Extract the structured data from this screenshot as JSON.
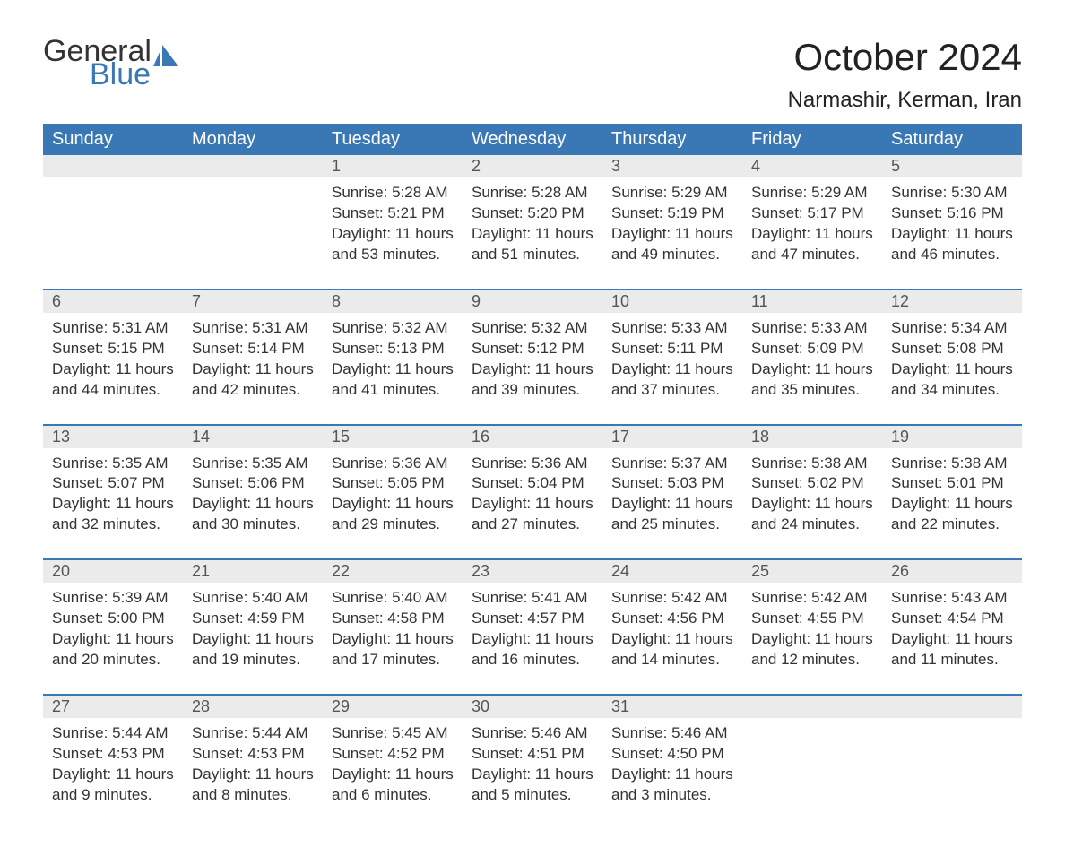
{
  "brand": {
    "word1": "General",
    "word2": "Blue",
    "accent_color": "#3a78b5"
  },
  "title": "October 2024",
  "location": "Narmashir, Kerman, Iran",
  "colors": {
    "header_bg": "#3a78b5",
    "header_text": "#ffffff",
    "daynum_bg": "#ebebeb",
    "daynum_text": "#555555",
    "body_text": "#333333",
    "rule": "#3a78b5",
    "page_bg": "#ffffff"
  },
  "typography": {
    "title_fontsize": 42,
    "location_fontsize": 24,
    "weekday_fontsize": 20,
    "daynum_fontsize": 18,
    "body_fontsize": 17,
    "font_family": "Arial"
  },
  "weekdays": [
    "Sunday",
    "Monday",
    "Tuesday",
    "Wednesday",
    "Thursday",
    "Friday",
    "Saturday"
  ],
  "weeks": [
    [
      null,
      null,
      {
        "n": "1",
        "sunrise": "5:28 AM",
        "sunset": "5:21 PM",
        "daylight": "11 hours and 53 minutes."
      },
      {
        "n": "2",
        "sunrise": "5:28 AM",
        "sunset": "5:20 PM",
        "daylight": "11 hours and 51 minutes."
      },
      {
        "n": "3",
        "sunrise": "5:29 AM",
        "sunset": "5:19 PM",
        "daylight": "11 hours and 49 minutes."
      },
      {
        "n": "4",
        "sunrise": "5:29 AM",
        "sunset": "5:17 PM",
        "daylight": "11 hours and 47 minutes."
      },
      {
        "n": "5",
        "sunrise": "5:30 AM",
        "sunset": "5:16 PM",
        "daylight": "11 hours and 46 minutes."
      }
    ],
    [
      {
        "n": "6",
        "sunrise": "5:31 AM",
        "sunset": "5:15 PM",
        "daylight": "11 hours and 44 minutes."
      },
      {
        "n": "7",
        "sunrise": "5:31 AM",
        "sunset": "5:14 PM",
        "daylight": "11 hours and 42 minutes."
      },
      {
        "n": "8",
        "sunrise": "5:32 AM",
        "sunset": "5:13 PM",
        "daylight": "11 hours and 41 minutes."
      },
      {
        "n": "9",
        "sunrise": "5:32 AM",
        "sunset": "5:12 PM",
        "daylight": "11 hours and 39 minutes."
      },
      {
        "n": "10",
        "sunrise": "5:33 AM",
        "sunset": "5:11 PM",
        "daylight": "11 hours and 37 minutes."
      },
      {
        "n": "11",
        "sunrise": "5:33 AM",
        "sunset": "5:09 PM",
        "daylight": "11 hours and 35 minutes."
      },
      {
        "n": "12",
        "sunrise": "5:34 AM",
        "sunset": "5:08 PM",
        "daylight": "11 hours and 34 minutes."
      }
    ],
    [
      {
        "n": "13",
        "sunrise": "5:35 AM",
        "sunset": "5:07 PM",
        "daylight": "11 hours and 32 minutes."
      },
      {
        "n": "14",
        "sunrise": "5:35 AM",
        "sunset": "5:06 PM",
        "daylight": "11 hours and 30 minutes."
      },
      {
        "n": "15",
        "sunrise": "5:36 AM",
        "sunset": "5:05 PM",
        "daylight": "11 hours and 29 minutes."
      },
      {
        "n": "16",
        "sunrise": "5:36 AM",
        "sunset": "5:04 PM",
        "daylight": "11 hours and 27 minutes."
      },
      {
        "n": "17",
        "sunrise": "5:37 AM",
        "sunset": "5:03 PM",
        "daylight": "11 hours and 25 minutes."
      },
      {
        "n": "18",
        "sunrise": "5:38 AM",
        "sunset": "5:02 PM",
        "daylight": "11 hours and 24 minutes."
      },
      {
        "n": "19",
        "sunrise": "5:38 AM",
        "sunset": "5:01 PM",
        "daylight": "11 hours and 22 minutes."
      }
    ],
    [
      {
        "n": "20",
        "sunrise": "5:39 AM",
        "sunset": "5:00 PM",
        "daylight": "11 hours and 20 minutes."
      },
      {
        "n": "21",
        "sunrise": "5:40 AM",
        "sunset": "4:59 PM",
        "daylight": "11 hours and 19 minutes."
      },
      {
        "n": "22",
        "sunrise": "5:40 AM",
        "sunset": "4:58 PM",
        "daylight": "11 hours and 17 minutes."
      },
      {
        "n": "23",
        "sunrise": "5:41 AM",
        "sunset": "4:57 PM",
        "daylight": "11 hours and 16 minutes."
      },
      {
        "n": "24",
        "sunrise": "5:42 AM",
        "sunset": "4:56 PM",
        "daylight": "11 hours and 14 minutes."
      },
      {
        "n": "25",
        "sunrise": "5:42 AM",
        "sunset": "4:55 PM",
        "daylight": "11 hours and 12 minutes."
      },
      {
        "n": "26",
        "sunrise": "5:43 AM",
        "sunset": "4:54 PM",
        "daylight": "11 hours and 11 minutes."
      }
    ],
    [
      {
        "n": "27",
        "sunrise": "5:44 AM",
        "sunset": "4:53 PM",
        "daylight": "11 hours and 9 minutes."
      },
      {
        "n": "28",
        "sunrise": "5:44 AM",
        "sunset": "4:53 PM",
        "daylight": "11 hours and 8 minutes."
      },
      {
        "n": "29",
        "sunrise": "5:45 AM",
        "sunset": "4:52 PM",
        "daylight": "11 hours and 6 minutes."
      },
      {
        "n": "30",
        "sunrise": "5:46 AM",
        "sunset": "4:51 PM",
        "daylight": "11 hours and 5 minutes."
      },
      {
        "n": "31",
        "sunrise": "5:46 AM",
        "sunset": "4:50 PM",
        "daylight": "11 hours and 3 minutes."
      },
      null,
      null
    ]
  ],
  "labels": {
    "sunrise": "Sunrise:",
    "sunset": "Sunset:",
    "daylight": "Daylight:"
  }
}
